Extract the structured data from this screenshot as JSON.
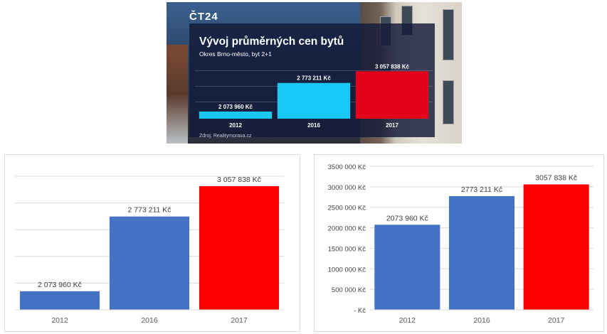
{
  "tv_graphic": {
    "logo": "ČT24",
    "title": "Vývoj průměrných cen bytů",
    "subtitle": "Okres Brno-město, byt 2+1",
    "source": "Zdroj: Realitymorava.cz"
  },
  "chart_data": [
    {
      "type": "bar",
      "title": "Vývoj průměrných cen bytů",
      "subtitle": "Okres Brno-město, byt 2+1",
      "source": "Zdroj: Realitymorava.cz",
      "categories": [
        "2012",
        "2016",
        "2017"
      ],
      "values": [
        2073960,
        2773211,
        3057838
      ],
      "data_labels": [
        "2 073 960 Kč",
        "2 773 211 Kč",
        "3 057 838 Kč"
      ],
      "colors": [
        "#19c8f5",
        "#19c8f5",
        "#e3001b"
      ],
      "ylim": [
        1900000,
        3150000
      ],
      "yaxis_visible": false
    },
    {
      "type": "bar",
      "categories": [
        "2012",
        "2016",
        "2017"
      ],
      "values": [
        2073960,
        2773211,
        3057838
      ],
      "data_labels": [
        "2 073 960 Kč",
        "2 773 211 Kč",
        "3 057 838 Kč"
      ],
      "colors": [
        "#4472c4",
        "#4472c4",
        "#ff0000"
      ],
      "ylim": [
        1900000,
        3150000
      ],
      "yaxis_visible": false,
      "grid": true
    },
    {
      "type": "bar",
      "categories": [
        "2012",
        "2016",
        "2017"
      ],
      "values": [
        2073960,
        2773211,
        3057838
      ],
      "data_labels": [
        "2073 960 Kč",
        "2773 211 Kč",
        "3057 838 Kč"
      ],
      "colors": [
        "#4472c4",
        "#4472c4",
        "#ff0000"
      ],
      "ylim": [
        0,
        3500000
      ],
      "yticks": [
        0,
        500000,
        1000000,
        1500000,
        2000000,
        2500000,
        3000000,
        3500000
      ],
      "ytick_labels": [
        "-  Kč",
        "500 000 Kč",
        "1000 000 Kč",
        "1500 000 Kč",
        "2000 000 Kč",
        "2500 000 Kč",
        "3000 000 Kč",
        "3500 000 Kč"
      ],
      "yaxis_visible": true,
      "grid": true
    }
  ]
}
